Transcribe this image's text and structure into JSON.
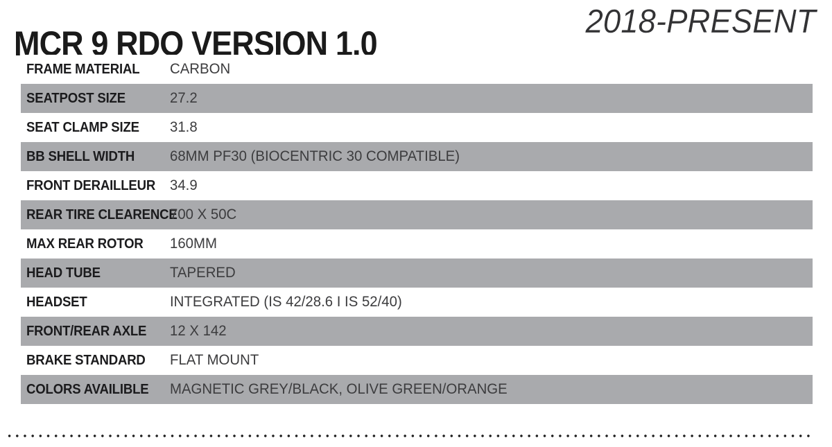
{
  "header": {
    "title": "MCR 9 RDO VERSION 1.0",
    "era": "2018-PRESENT"
  },
  "specs": {
    "rows": [
      {
        "label": "FRAME MATERIAL",
        "value": "CARBON"
      },
      {
        "label": "SEATPOST SIZE",
        "value": "27.2"
      },
      {
        "label": "SEAT CLAMP SIZE",
        "value": "31.8"
      },
      {
        "label": "BB SHELL WIDTH",
        "value": "68MM PF30 (BIOCENTRIC 30 COMPATIBLE)"
      },
      {
        "label": "FRONT DERAILLEUR",
        "value": "34.9"
      },
      {
        "label": "REAR TIRE CLEARENCE",
        "value": "700 X 50C"
      },
      {
        "label": "MAX REAR ROTOR",
        "value": "160MM"
      },
      {
        "label": "HEAD TUBE",
        "value": "TAPERED"
      },
      {
        "label": "HEADSET",
        "value": "INTEGRATED (IS 42/28.6 I IS 52/40)"
      },
      {
        "label": "FRONT/REAR AXLE",
        "value": "12 X 142"
      },
      {
        "label": "BRAKE STANDARD",
        "value": "FLAT MOUNT"
      },
      {
        "label": "COLORS AVAILIBLE",
        "value": "MAGNETIC GREY/BLACK, OLIVE GREEN/ORANGE"
      }
    ]
  },
  "colors": {
    "row_alt_bg": "#a9aaad",
    "label_text": "#1b1b1d",
    "value_text": "#3c3c3e",
    "title_text": "#1a1a1a",
    "era_text": "#323234",
    "dot_color": "#1f1f1f"
  }
}
